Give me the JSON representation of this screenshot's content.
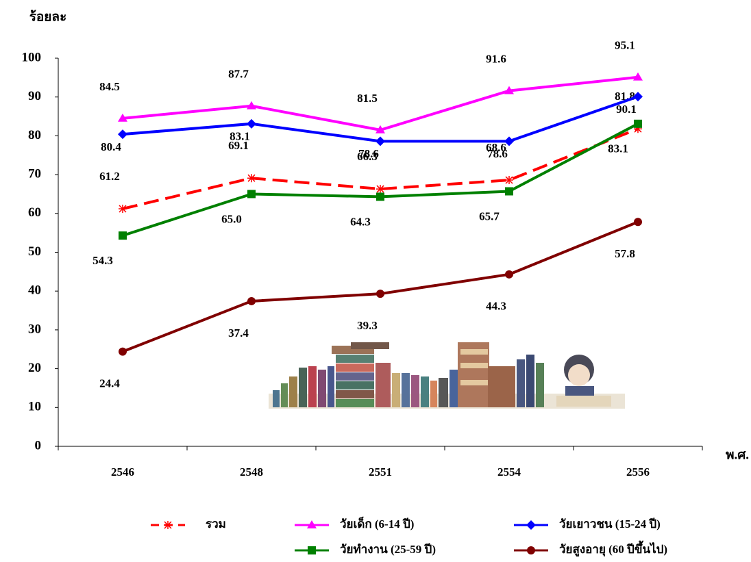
{
  "chart_data": {
    "type": "line",
    "y_label": "ร้อยละ",
    "x_label": "พ.ศ.",
    "categories": [
      "2546",
      "2548",
      "2551",
      "2554",
      "2556"
    ],
    "ylim": [
      0,
      100
    ],
    "yticks": [
      0,
      10,
      20,
      30,
      40,
      50,
      60,
      70,
      80,
      90,
      100
    ],
    "series": [
      {
        "name": "รวม",
        "color": "#ff0000",
        "dashed": true,
        "marker": "star",
        "values": [
          61.2,
          69.1,
          66.3,
          68.6,
          81.8
        ]
      },
      {
        "name": "วัยเด็ก (6-14 ปี)",
        "color": "#ff00ff",
        "dashed": false,
        "marker": "triangle",
        "values": [
          84.5,
          87.7,
          81.5,
          91.6,
          95.1
        ]
      },
      {
        "name": "วัยเยาวชน (15-24 ปี)",
        "color": "#0000ff",
        "dashed": false,
        "marker": "diamond",
        "values": [
          80.4,
          83.1,
          78.6,
          78.6,
          90.1
        ]
      },
      {
        "name": "วัยทำงาน (25-59 ปี)",
        "color": "#008000",
        "dashed": false,
        "marker": "square",
        "values": [
          54.3,
          65.0,
          64.3,
          65.7,
          83.1
        ],
        "value_labels": [
          "54.3",
          "65.0",
          "64.3",
          "65.7",
          "83.1"
        ]
      },
      {
        "name": "วัยสูงอายุ (60 ปีขึ้นไป)",
        "color": "#800000",
        "dashed": false,
        "marker": "circle",
        "values": [
          24.4,
          37.4,
          39.3,
          44.3,
          57.8
        ]
      }
    ]
  }
}
